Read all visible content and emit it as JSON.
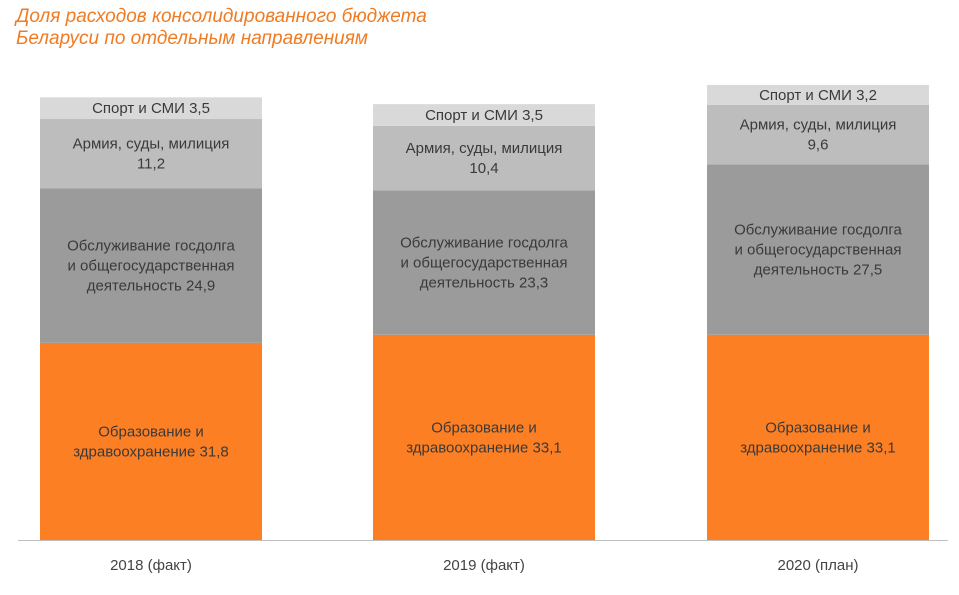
{
  "title_lines": [
    "Доля расходов консолидированного бюджета",
    "Беларуси по отдельным направлениям"
  ],
  "colors": {
    "title": "#f07b22",
    "education_health": "#fd7f23",
    "debt_general": "#9b9b9b",
    "army_courts_police": "#bdbdbd",
    "sport_media": "#d9d9d9",
    "label_text": "#3a3a3a",
    "axis": "#bfbfbf"
  },
  "chart_data": {
    "type": "bar",
    "stacked": true,
    "title": "Доля расходов консолидированного бюджета Беларуси по отдельным направлениям",
    "categories": [
      "2018 (факт)",
      "2019 (факт)",
      "2020 (план)"
    ],
    "series": [
      {
        "key": "education_health",
        "values": [
          31.8,
          33.1,
          33.1
        ],
        "labels": [
          [
            "Образование и",
            "здравоохранение 31,8"
          ],
          [
            "Образование и",
            "здравоохранение 33,1"
          ],
          [
            "Образование и",
            "здравоохранение 33,1"
          ]
        ]
      },
      {
        "key": "debt_general",
        "values": [
          24.9,
          23.3,
          27.5
        ],
        "labels": [
          [
            "Обслуживание госдолга",
            "и общегосударственная",
            "деятельность 24,9"
          ],
          [
            "Обслуживание госдолга",
            "и общегосударственная",
            "деятельность 23,3"
          ],
          [
            "Обслуживание госдолга",
            "и общегосударственная",
            "деятельность 27,5"
          ]
        ]
      },
      {
        "key": "army_courts_police",
        "values": [
          11.2,
          10.4,
          9.6
        ],
        "labels": [
          [
            "Армия, суды, милиция",
            "11,2"
          ],
          [
            "Армия, суды, милиция",
            "10,4"
          ],
          [
            "Армия, суды, милиция",
            "9,6"
          ]
        ]
      },
      {
        "key": "sport_media",
        "values": [
          3.5,
          3.5,
          3.2
        ],
        "labels": [
          [
            "Спорт и СМИ 3,5"
          ],
          [
            "Спорт и СМИ 3,5"
          ],
          [
            "Спорт и СМИ 3,2"
          ]
        ]
      }
    ],
    "legend": "none",
    "grid": false
  }
}
